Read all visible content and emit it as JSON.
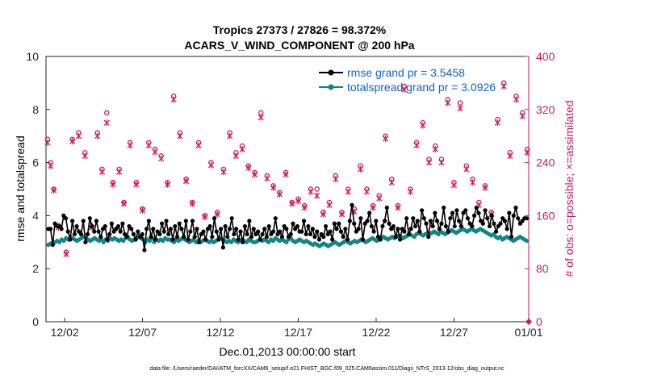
{
  "chart_data": {
    "type": "line",
    "title_line1": "Tropics 27373 / 27826 = 98.372%",
    "title_line2": "ACARS_V_WIND_COMPONENT @ 200 hPa",
    "xlabel": "Dec.01,2013 00:00:00 start",
    "ylabel_left": "rmse and totalspread",
    "ylabel_right": "# of obs: o=possible; ×=assimilated",
    "xlim": [
      0,
      31
    ],
    "ylim_left": [
      0,
      10
    ],
    "ylim_right": [
      0,
      400
    ],
    "x_ticks": [
      1.2,
      6.2,
      11.2,
      16.2,
      21.2,
      26.2,
      31
    ],
    "x_tick_labels": [
      "12/02",
      "12/07",
      "12/12",
      "12/17",
      "12/22",
      "12/27",
      "01/01"
    ],
    "y_ticks_left": [
      0,
      2,
      4,
      6,
      8,
      10
    ],
    "y_tick_labels_left": [
      "0",
      "2",
      "4",
      "6",
      "8",
      "10"
    ],
    "y_ticks_right": [
      0,
      80,
      160,
      240,
      320,
      400
    ],
    "y_tick_labels_right": [
      "0",
      "80",
      "160",
      "240",
      "320",
      "400"
    ],
    "footnote": "data file: /Users/raeder/DAI/ATM_forcXX/CAM6_setup/f.e21.FHIST_BGC.f09_025.CAM6assim.011/Diags_NTrS_2013-12/obs_diag_output.nc",
    "colors": {
      "rmse": "#000000",
      "spread": "#0f8585",
      "obs": "#d11a55"
    },
    "series": [
      {
        "name": "rmse",
        "legend": "rmse grand pr = 3.5458",
        "axis": "left",
        "values": [
          3.5,
          3.5,
          2.9,
          3.7,
          3.6,
          3.6,
          3.5,
          4.0,
          3.9,
          3.4,
          3.1,
          3.8,
          3.3,
          3.6,
          3.4,
          3.3,
          3.8,
          3.0,
          3.3,
          3.9,
          3.6,
          3.4,
          3.8,
          3.4,
          3.2,
          3.5,
          3.6,
          3.1,
          3.3,
          3.7,
          3.4,
          3.5,
          3.6,
          3.4,
          3.7,
          3.3,
          3.2,
          3.6,
          3.5,
          3.3,
          3.1,
          3.4,
          3.2,
          3.3,
          2.7,
          3.5,
          3.8,
          3.2,
          3.5,
          3.1,
          3.4,
          3.3,
          3.7,
          3.4,
          3.8,
          3.3,
          3.5,
          3.1,
          3.6,
          3.2,
          3.7,
          3.5,
          3.2,
          3.8,
          3.1,
          3.4,
          3.8,
          3.2,
          3.5,
          3.0,
          3.3,
          3.4,
          3.1,
          3.5,
          3.6,
          3.2,
          3.9,
          3.4,
          3.1,
          3.5,
          2.8,
          3.6,
          3.2,
          3.5,
          3.9,
          3.3,
          3.5,
          3.1,
          3.4,
          3.0,
          3.6,
          3.3,
          3.8,
          3.2,
          3.5,
          3.3,
          3.4,
          3.1,
          3.3,
          3.5,
          3.2,
          3.6,
          3.3,
          3.4,
          3.9,
          3.3,
          3.4,
          3.2,
          3.6,
          3.5,
          3.2,
          3.3,
          3.7,
          3.5,
          3.6,
          3.4,
          3.4,
          3.8,
          3.3,
          3.6,
          3.3,
          3.5,
          3.2,
          3.4,
          3.1,
          3.3,
          3.2,
          3.6,
          3.3,
          3.4,
          3.1,
          3.7,
          3.5,
          3.7,
          3.4,
          3.2,
          3.5,
          3.1,
          3.8,
          4.4,
          3.7,
          3.4,
          3.5,
          3.9,
          3.1,
          3.7,
          3.8,
          4.1,
          3.6,
          3.4,
          3.8,
          3.2,
          3.1,
          3.6,
          3.8,
          4.3,
          3.7,
          3.5,
          3.6,
          3.2,
          3.5,
          3.1,
          3.5,
          3.4,
          3.9,
          3.3,
          3.5,
          3.9,
          3.6,
          3.8,
          3.4,
          4.2,
          3.9,
          3.7,
          3.2,
          3.8,
          3.6,
          4.1,
          3.8,
          3.5,
          3.7,
          4.3,
          3.6,
          3.4,
          3.9,
          4.1,
          3.6,
          4.2,
          3.8,
          3.6,
          4.1,
          4.2,
          3.9,
          3.7,
          3.6,
          4.0,
          4.3,
          4.1,
          3.8,
          3.7,
          4.2,
          3.9,
          3.6,
          4.0,
          3.7,
          3.4,
          3.6,
          3.7,
          3.9,
          3.8,
          3.5,
          4.1,
          3.2,
          4.0,
          4.3,
          3.9,
          3.7,
          3.8,
          3.9,
          3.9
        ]
      },
      {
        "name": "totalspread",
        "legend": "totalspread grand pr = 3.0926",
        "axis": "left",
        "values": [
          2.9,
          2.95,
          2.97,
          3.0,
          3.05,
          3.0,
          3.1,
          3.05,
          3.15,
          3.1,
          3.2,
          3.15,
          3.1,
          3.05,
          3.1,
          3.15,
          3.2,
          3.15,
          3.1,
          3.05,
          3.1,
          3.15,
          3.1,
          3.05,
          3.1,
          3.0,
          3.1,
          3.05,
          3.15,
          3.1,
          3.15,
          3.1,
          3.05,
          3.1,
          3.05,
          3.15,
          3.2,
          3.1,
          3.05,
          3.1,
          3.15,
          3.2,
          3.15,
          3.1,
          3.0,
          3.1,
          3.05,
          3.15,
          3.0,
          3.1,
          3.05,
          3.1,
          3.05,
          3.15,
          3.1,
          3.1,
          3.05,
          3.0,
          3.1,
          3.05,
          3.1,
          3.15,
          3.1,
          3.05,
          3.0,
          3.05,
          3.1,
          3.0,
          3.05,
          3.0,
          3.05,
          3.1,
          3.05,
          3.0,
          3.05,
          3.0,
          3.05,
          3.1,
          3.15,
          3.1,
          3.05,
          3.0,
          3.05,
          3.0,
          3.1,
          3.05,
          3.0,
          3.05,
          3.1,
          3.05,
          3.0,
          3.1,
          3.05,
          3.0,
          3.0,
          3.05,
          3.1,
          3.05,
          3.1,
          3.05,
          3.0,
          3.1,
          3.05,
          3.15,
          3.1,
          3.05,
          3.1,
          3.05,
          3.0,
          3.1,
          3.15,
          3.05,
          3.0,
          3.05,
          3.1,
          3.05,
          3.0,
          3.05,
          3.0,
          2.95,
          2.9,
          2.95,
          2.9,
          2.85,
          2.9,
          2.95,
          2.9,
          2.85,
          2.9,
          2.95,
          3.0,
          2.95,
          2.9,
          2.95,
          3.0,
          3.05,
          3.0,
          2.95,
          3.0,
          3.05,
          3.0,
          3.05,
          3.1,
          3.05,
          3.0,
          3.05,
          3.1,
          3.15,
          3.1,
          3.05,
          3.1,
          3.15,
          3.2,
          3.15,
          3.1,
          3.15,
          3.2,
          3.15,
          3.2,
          3.25,
          3.2,
          3.15,
          3.2,
          3.25,
          3.3,
          3.25,
          3.2,
          3.3,
          3.35,
          3.3,
          3.25,
          3.3,
          3.35,
          3.3,
          3.35,
          3.4,
          3.35,
          3.3,
          3.4,
          3.35,
          3.3,
          3.35,
          3.4,
          3.45,
          3.4,
          3.35,
          3.4,
          3.45,
          3.5,
          3.45,
          3.4,
          3.45,
          3.5,
          3.45,
          3.4,
          3.45,
          3.5,
          3.45,
          3.4,
          3.35,
          3.3,
          3.25,
          3.3,
          3.2,
          3.15,
          3.2,
          3.1,
          3.15,
          3.2,
          3.15,
          3.1,
          3.05,
          3.1,
          3.15,
          3.2,
          3.15,
          3.1,
          3.05
        ]
      },
      {
        "name": "obs_possible",
        "axis": "right",
        "marker": "o",
        "x": [
          0.1,
          0.3,
          0.5,
          0.8,
          1.3,
          1.7,
          2.1,
          2.5,
          2.9,
          3.3,
          3.6,
          3.9,
          4.3,
          4.7,
          5.0,
          5.4,
          5.8,
          6.2,
          6.6,
          7.0,
          7.4,
          7.8,
          8.2,
          8.6,
          9.0,
          9.4,
          9.8,
          10.2,
          10.6,
          11.0,
          11.4,
          11.8,
          12.2,
          12.6,
          13.0,
          13.4,
          13.8,
          14.2,
          14.6,
          15.0,
          15.4,
          15.8,
          16.2,
          16.6,
          17.0,
          17.4,
          17.8,
          18.2,
          18.6,
          19.0,
          19.4,
          19.8,
          20.2,
          20.6,
          21.0,
          21.4,
          21.8,
          22.2,
          22.6,
          23.0,
          23.4,
          23.8,
          24.2,
          24.6,
          25.0,
          25.4,
          25.8,
          26.2,
          26.6,
          27.0,
          27.4,
          27.8,
          28.2,
          28.6,
          29.0,
          29.4,
          29.8,
          30.2,
          30.6,
          30.9
        ],
        "values": [
          275,
          240,
          200,
          145,
          105,
          275,
          285,
          255,
          145,
          285,
          230,
          315,
          210,
          230,
          180,
          270,
          210,
          170,
          270,
          260,
          250,
          210,
          340,
          285,
          215,
          180,
          270,
          160,
          240,
          165,
          230,
          285,
          255,
          265,
          235,
          225,
          315,
          220,
          205,
          195,
          225,
          180,
          185,
          175,
          200,
          200,
          165,
          180,
          220,
          165,
          200,
          170,
          235,
          200,
          175,
          190,
          280,
          215,
          175,
          355,
          200,
          270,
          300,
          245,
          265,
          245,
          335,
          210,
          330,
          235,
          215,
          180,
          205,
          165,
          305,
          360,
          255,
          340,
          315,
          260
        ]
      },
      {
        "name": "obs_assimilated",
        "axis": "right",
        "marker": "x",
        "x": [
          0.1,
          0.3,
          0.5,
          0.8,
          1.3,
          1.7,
          2.1,
          2.5,
          2.9,
          3.3,
          3.6,
          3.9,
          4.3,
          4.7,
          5.0,
          5.4,
          5.8,
          6.2,
          6.6,
          7.0,
          7.4,
          7.8,
          8.2,
          8.6,
          9.0,
          9.4,
          9.8,
          10.2,
          10.6,
          11.0,
          11.4,
          11.8,
          12.2,
          12.6,
          13.0,
          13.4,
          13.8,
          14.2,
          14.6,
          15.0,
          15.4,
          15.8,
          16.2,
          16.6,
          17.0,
          17.4,
          17.8,
          18.2,
          18.6,
          19.0,
          19.4,
          19.8,
          20.2,
          20.6,
          21.0,
          21.4,
          21.8,
          22.2,
          22.6,
          23.0,
          23.4,
          23.8,
          24.2,
          24.6,
          25.0,
          25.4,
          25.8,
          26.2,
          26.6,
          27.0,
          27.4,
          27.8,
          28.2,
          28.6,
          29.0,
          29.4,
          29.8,
          30.2,
          30.6,
          30.9
        ],
        "values": [
          270,
          235,
          198,
          142,
          102,
          272,
          280,
          250,
          142,
          280,
          226,
          300,
          207,
          226,
          178,
          266,
          207,
          168,
          266,
          256,
          246,
          207,
          335,
          280,
          212,
          178,
          266,
          158,
          236,
          162,
          226,
          280,
          250,
          260,
          232,
          222,
          308,
          216,
          202,
          192,
          222,
          178,
          182,
          172,
          196,
          190,
          162,
          176,
          215,
          162,
          196,
          166,
          230,
          196,
          172,
          186,
          276,
          210,
          172,
          350,
          196,
          266,
          296,
          240,
          260,
          240,
          330,
          206,
          322,
          230,
          210,
          176,
          202,
          162,
          300,
          355,
          250,
          335,
          310,
          255
        ]
      }
    ]
  }
}
